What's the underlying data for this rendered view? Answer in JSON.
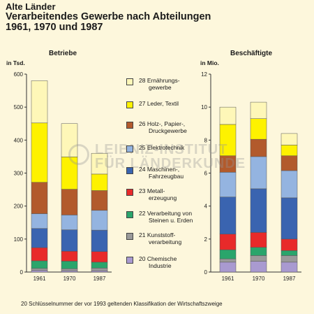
{
  "header": {
    "line1": "Alte Länder",
    "line2": "Verarbeitendes Gewerbe nach Abteilungen",
    "line3": "1961, 1970 und 1987"
  },
  "footnote": "20  Schlüsselnummer der vor 1993 geltenden Klassifikation der Wirtschaftszweige",
  "watermark": {
    "line1": "LEIBNIZ-INSTITUT",
    "line2": "FÜR LÄNDERKUNDE"
  },
  "legend": [
    {
      "label": "28 Ernährungs-\ngewerbe",
      "color": "#fef7b8"
    },
    {
      "label": "27 Leder, Textil",
      "color": "#fef200"
    },
    {
      "label": "26 Holz-, Papier-,\nDruckgewerbe",
      "color": "#b25a2c"
    },
    {
      "label": "25 Elektrotechnik",
      "color": "#94b4e0"
    },
    {
      "label": "24 Maschinen-,\nFahrzeugbau",
      "color": "#3a64b0"
    },
    {
      "label": "23 Metall-\nerzeugung",
      "color": "#e82a2a"
    },
    {
      "label": "22 Verarbeitung von\nSteinen u. Erden",
      "color": "#2aa56b"
    },
    {
      "label": "21 Kunststoff-\nverarbeitung",
      "color": "#9a9a9a"
    },
    {
      "label": "20 Chemische\nIndustrie",
      "color": "#a99ad0"
    }
  ],
  "chart_data": [
    {
      "type": "bar",
      "stacked": true,
      "title": "Betriebe",
      "ylabel": "in Tsd.",
      "categories": [
        "1961",
        "1970",
        "1987"
      ],
      "ylim": [
        0,
        600
      ],
      "yticks": [
        0,
        100,
        200,
        300,
        400,
        500,
        600
      ],
      "series": [
        {
          "name": "20 Chemische Industrie",
          "color": "#a99ad0",
          "values": [
            5,
            4,
            4
          ]
        },
        {
          "name": "21 Kunststoffverarbeitung",
          "color": "#9a9a9a",
          "values": [
            6,
            6,
            8
          ]
        },
        {
          "name": "22 Verarbeitung von Steinen u. Erden",
          "color": "#2aa56b",
          "values": [
            23,
            23,
            18
          ]
        },
        {
          "name": "23 Metallerzeugung",
          "color": "#e82a2a",
          "values": [
            40,
            30,
            32
          ]
        },
        {
          "name": "24 Maschinen-, Fahrzeugbau",
          "color": "#3a64b0",
          "values": [
            58,
            65,
            65
          ]
        },
        {
          "name": "25 Elektrotechnik",
          "color": "#94b4e0",
          "values": [
            45,
            45,
            60
          ]
        },
        {
          "name": "26 Holz-, Papier-, Druckgewerbe",
          "color": "#b25a2c",
          "values": [
            95,
            78,
            60
          ]
        },
        {
          "name": "27 Leder, Textil",
          "color": "#fef200",
          "values": [
            180,
            98,
            50
          ]
        },
        {
          "name": "28 Ernährungsgewerbe",
          "color": "#fef7b8",
          "values": [
            128,
            101,
            63
          ]
        }
      ]
    },
    {
      "type": "bar",
      "stacked": true,
      "title": "Beschäftigte",
      "ylabel": "in Mio.",
      "categories": [
        "1961",
        "1970",
        "1987"
      ],
      "ylim": [
        0,
        12
      ],
      "yticks": [
        0,
        2,
        4,
        6,
        8,
        10,
        12
      ],
      "series": [
        {
          "name": "20 Chemische Industrie",
          "color": "#a99ad0",
          "values": [
            0.6,
            0.65,
            0.6
          ]
        },
        {
          "name": "21 Kunststoffverarbeitung",
          "color": "#9a9a9a",
          "values": [
            0.2,
            0.35,
            0.4
          ]
        },
        {
          "name": "22 Verarbeitung von Steinen u. Erden",
          "color": "#2aa56b",
          "values": [
            0.55,
            0.5,
            0.3
          ]
        },
        {
          "name": "23 Metallerzeugung",
          "color": "#e82a2a",
          "values": [
            0.95,
            0.9,
            0.7
          ]
        },
        {
          "name": "24 Maschinen-, Fahrzeugbau",
          "color": "#3a64b0",
          "values": [
            2.25,
            2.65,
            2.5
          ]
        },
        {
          "name": "25 Elektrotechnik",
          "color": "#94b4e0",
          "values": [
            1.5,
            1.95,
            1.65
          ]
        },
        {
          "name": "26 Holz-, Papier-, Druckgewerbe",
          "color": "#b25a2c",
          "values": [
            1.0,
            1.05,
            0.9
          ]
        },
        {
          "name": "27 Leder, Textil",
          "color": "#fef200",
          "values": [
            1.9,
            1.25,
            0.65
          ]
        },
        {
          "name": "28 Ernährungsgewerbe",
          "color": "#fef7b8",
          "values": [
            1.05,
            1.0,
            0.7
          ]
        }
      ]
    }
  ]
}
